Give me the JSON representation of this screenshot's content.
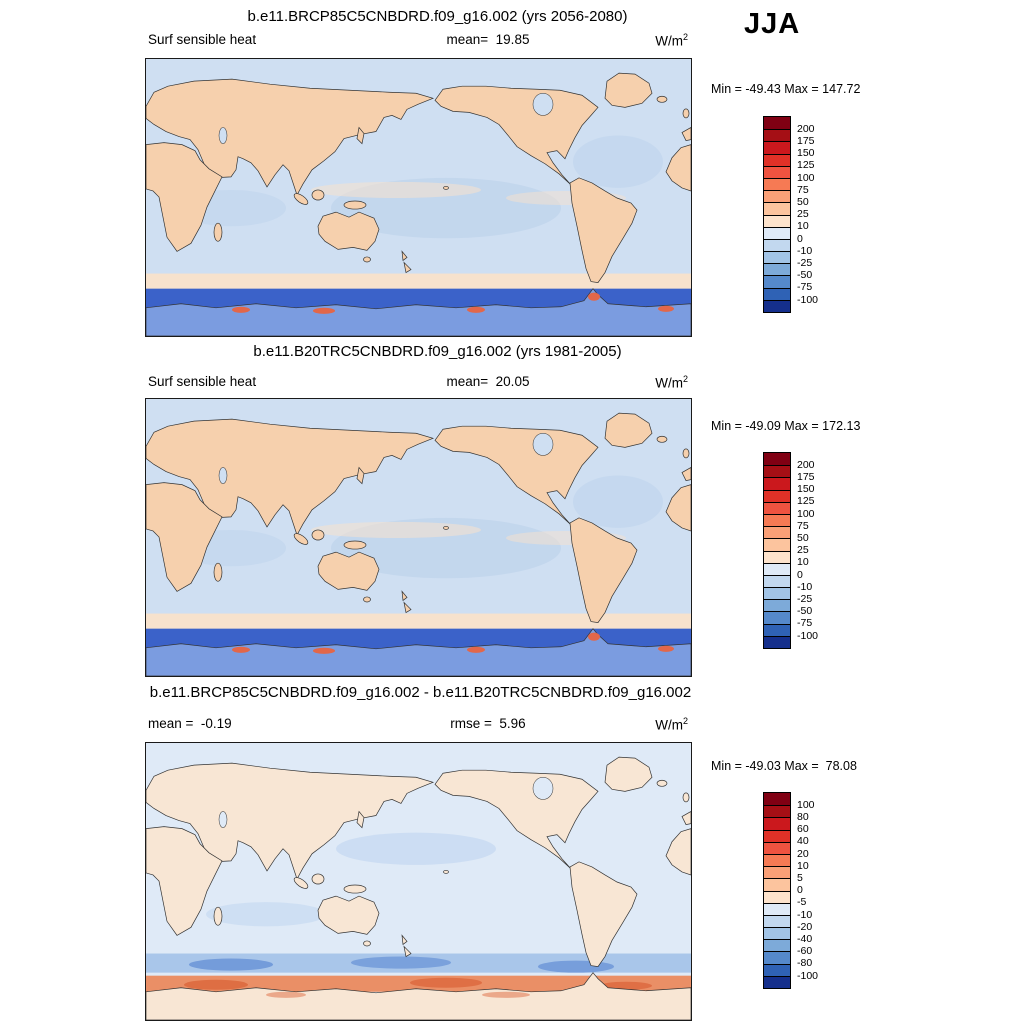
{
  "season_label": "JJA",
  "panels": [
    {
      "title": "b.e11.BRCP85C5CNBDRD.f09_g16.002 (yrs 2056-2080)",
      "field_label": "Surf sensible heat",
      "mean_label": "mean=  19.85",
      "units": "W/m",
      "units_sup": "2",
      "minmax": "Min = -49.43 Max = 147.72",
      "colorbar": {
        "ticks": [
          "200",
          "175",
          "150",
          "125",
          "100",
          "75",
          "50",
          "25",
          "10",
          "0",
          "-10",
          "-25",
          "-50",
          "-75",
          "-100"
        ],
        "colors": [
          "#800013",
          "#a50f15",
          "#cb181d",
          "#e03127",
          "#ef5340",
          "#f67a54",
          "#faa077",
          "#fcc49e",
          "#fde3cc",
          "#dfeaf7",
          "#c2d8ef",
          "#a2c4e6",
          "#7daad9",
          "#5589cb",
          "#2f62b5",
          "#152f8c"
        ]
      }
    },
    {
      "title": "b.e11.B20TRC5CNBDRD.f09_g16.002 (yrs 1981-2005)",
      "field_label": "Surf sensible heat",
      "mean_label": "mean=  20.05",
      "units": "W/m",
      "units_sup": "2",
      "minmax": "Min = -49.09 Max = 172.13",
      "colorbar": {
        "ticks": [
          "200",
          "175",
          "150",
          "125",
          "100",
          "75",
          "50",
          "25",
          "10",
          "0",
          "-10",
          "-25",
          "-50",
          "-75",
          "-100"
        ],
        "colors": [
          "#800013",
          "#a50f15",
          "#cb181d",
          "#e03127",
          "#ef5340",
          "#f67a54",
          "#faa077",
          "#fcc49e",
          "#fde3cc",
          "#dfeaf7",
          "#c2d8ef",
          "#a2c4e6",
          "#7daad9",
          "#5589cb",
          "#2f62b5",
          "#152f8c"
        ]
      }
    },
    {
      "title": "b.e11.BRCP85C5CNBDRD.f09_g16.002 - b.e11.B20TRC5CNBDRD.f09_g16.002",
      "mean_label": "mean =  -0.19",
      "rmse_label": "rmse =  5.96",
      "units": "W/m",
      "units_sup": "2",
      "minmax": "Min = -49.03 Max =  78.08",
      "colorbar": {
        "ticks": [
          "100",
          "80",
          "60",
          "40",
          "20",
          "10",
          "5",
          "0",
          "-5",
          "-10",
          "-20",
          "-40",
          "-60",
          "-80",
          "-100"
        ],
        "colors": [
          "#800013",
          "#a50f15",
          "#cb181d",
          "#e03127",
          "#ef5340",
          "#f67a54",
          "#faa077",
          "#fcc49e",
          "#fde3cc",
          "#dfeaf7",
          "#c2d8ef",
          "#a2c4e6",
          "#7daad9",
          "#5589cb",
          "#2f62b5",
          "#152f8c"
        ]
      }
    }
  ],
  "map_colors": {
    "ocean": "#cfdff2",
    "oceandeep": "#b9d0ea",
    "land": "#f6d0ad",
    "warm1": "#f3a671",
    "warm2": "#e87a44",
    "creamband": "#f7e2cd",
    "polardeep": "#3b62c9",
    "polarland": "#7b9ce0",
    "polarspot": "#e2674a",
    "docean": "#dfeaf7",
    "dland": "#f8e6d4",
    "dwarm": "#f0b493",
    "dwarmstrong": "#e28a62",
    "dcoolband": "#a9c6ea",
    "dcooldeep": "#6e97d8",
    "dwarmband": "#ea8f66",
    "dwarmdeep": "#dd6a3f"
  },
  "chart_data": [
    {
      "type": "heatmap",
      "title": "b.e11.BRCP85C5CNBDRD.f09_g16.002 (yrs 2056-2080)",
      "variable": "Surf sensible heat",
      "season": "JJA",
      "units": "W/m^2",
      "mean": 19.85,
      "min": -49.43,
      "max": 147.72,
      "levels": [
        -100,
        -75,
        -50,
        -25,
        -10,
        0,
        10,
        25,
        50,
        75,
        100,
        125,
        150,
        175,
        200
      ],
      "legend_position": "right"
    },
    {
      "type": "heatmap",
      "title": "b.e11.B20TRC5CNBDRD.f09_g16.002 (yrs 1981-2005)",
      "variable": "Surf sensible heat",
      "season": "JJA",
      "units": "W/m^2",
      "mean": 20.05,
      "min": -49.09,
      "max": 172.13,
      "levels": [
        -100,
        -75,
        -50,
        -25,
        -10,
        0,
        10,
        25,
        50,
        75,
        100,
        125,
        150,
        175,
        200
      ],
      "legend_position": "right"
    },
    {
      "type": "heatmap",
      "title": "b.e11.BRCP85C5CNBDRD.f09_g16.002 - b.e11.B20TRC5CNBDRD.f09_g16.002",
      "variable": "Surf sensible heat",
      "season": "JJA",
      "units": "W/m^2",
      "mean": -0.19,
      "rmse": 5.96,
      "min": -49.03,
      "max": 78.08,
      "levels": [
        -100,
        -80,
        -60,
        -40,
        -20,
        -10,
        -5,
        0,
        5,
        10,
        20,
        40,
        60,
        80,
        100
      ],
      "legend_position": "right"
    }
  ]
}
